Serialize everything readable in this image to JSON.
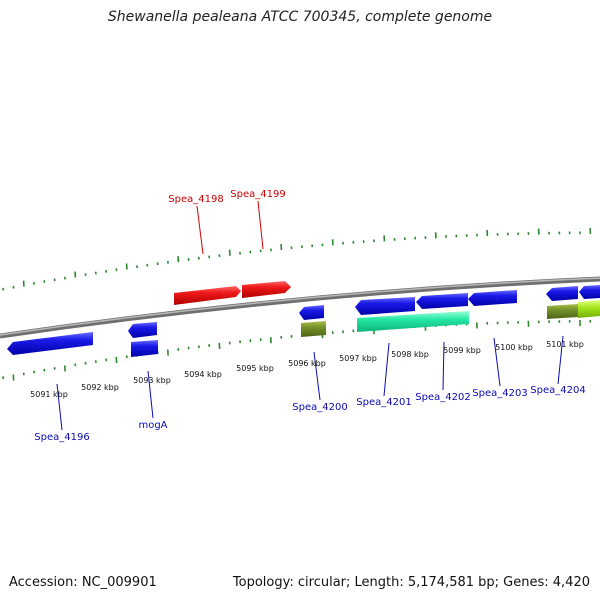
{
  "title": "Shewanella pealeana ATCC 700345, complete genome",
  "accession": "Accession: NC_009901",
  "stats": "Topology: circular; Length: 5,174,581 bp; Genes: 4,420",
  "colors": {
    "backbone": "#8c8c8c",
    "tick": "#2a8a2a",
    "forward_gene": "#e01010",
    "reverse_gene": "#1414d8",
    "cds_olive": "#6e8a22",
    "cds_green": "#22e6a0",
    "cds_lime": "#a6e61e",
    "label_red": "#cc0000",
    "label_blue": "#0a0ab4"
  },
  "scale": {
    "ticks": [
      {
        "label": "5091 kbp"
      },
      {
        "label": "5092 kbp"
      },
      {
        "label": "5093 kbp"
      },
      {
        "label": "5094 kbp"
      },
      {
        "label": "5095 kbp"
      },
      {
        "label": "5096 kbp"
      },
      {
        "label": "5097 kbp"
      },
      {
        "label": "5098 kbp"
      },
      {
        "label": "5099 kbp"
      },
      {
        "label": "5100 kbp"
      },
      {
        "label": "5101 kbp"
      }
    ]
  },
  "gene_labels": [
    {
      "name": "Spea_4198",
      "strand": "forward"
    },
    {
      "name": "Spea_4199",
      "strand": "forward"
    },
    {
      "name": "Spea_4196",
      "strand": "reverse"
    },
    {
      "name": "mogA",
      "strand": "reverse"
    },
    {
      "name": "Spea_4200",
      "strand": "reverse"
    },
    {
      "name": "Spea_4201",
      "strand": "reverse"
    },
    {
      "name": "Spea_4202",
      "strand": "reverse"
    },
    {
      "name": "Spea_4203",
      "strand": "reverse"
    },
    {
      "name": "Spea_4204",
      "strand": "reverse"
    }
  ]
}
